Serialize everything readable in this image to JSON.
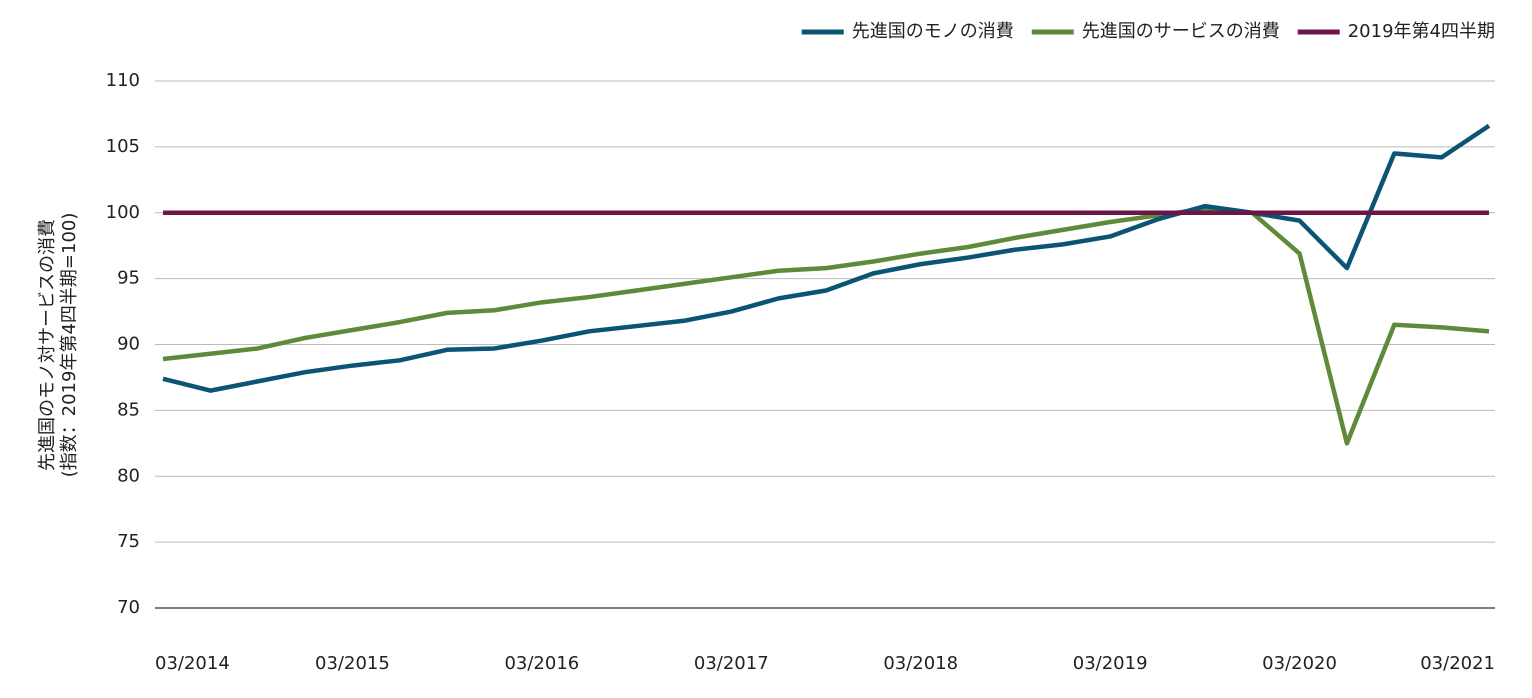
{
  "chart_data": {
    "type": "line",
    "y_label_lines": [
      "先進国のモノ対サービスの消費",
      "(指数：2019年第4四半期=100)"
    ],
    "categories": [
      "03/2014",
      null,
      null,
      null,
      "03/2015",
      null,
      null,
      null,
      "03/2016",
      null,
      null,
      null,
      "03/2017",
      null,
      null,
      null,
      "03/2018",
      null,
      null,
      null,
      "03/2019",
      null,
      null,
      null,
      "03/2020",
      null,
      null,
      null,
      "03/2021"
    ],
    "series": [
      {
        "name": "先進国のモノの消費",
        "color": "#0b5474",
        "values": [
          87.4,
          86.5,
          87.2,
          87.9,
          88.4,
          88.8,
          89.6,
          89.7,
          90.3,
          91.0,
          91.4,
          91.8,
          92.5,
          93.5,
          94.1,
          95.4,
          96.1,
          96.6,
          97.2,
          97.6,
          98.2,
          99.5,
          100.5,
          100.0,
          99.4,
          95.8,
          104.5,
          104.2,
          106.6
        ]
      },
      {
        "name": "先進国のサービスの消費",
        "color": "#5e8a3a",
        "values": [
          88.9,
          89.3,
          89.7,
          90.5,
          91.1,
          91.7,
          92.4,
          92.6,
          93.2,
          93.6,
          94.1,
          94.6,
          95.1,
          95.6,
          95.8,
          96.3,
          96.9,
          97.4,
          98.1,
          98.7,
          99.3,
          99.8,
          100.3,
          100.0,
          96.9,
          82.5,
          91.5,
          91.3,
          91.0
        ]
      },
      {
        "name": "2019年第4四半期",
        "color": "#6b1549",
        "values": [
          100,
          100,
          100,
          100,
          100,
          100,
          100,
          100,
          100,
          100,
          100,
          100,
          100,
          100,
          100,
          100,
          100,
          100,
          100,
          100,
          100,
          100,
          100,
          100,
          100,
          100,
          100,
          100,
          100
        ]
      }
    ],
    "ylim": [
      70,
      110
    ],
    "yticks": [
      70,
      75,
      80,
      85,
      90,
      95,
      100,
      105,
      110
    ],
    "grid": true,
    "legend": "top-right"
  }
}
